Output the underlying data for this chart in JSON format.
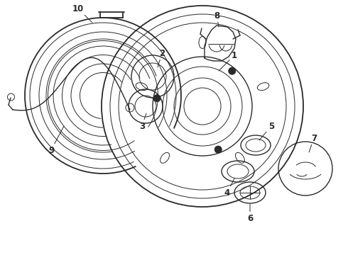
{
  "background_color": "#ffffff",
  "line_color": "#2a2a2a",
  "figsize": [
    4.9,
    3.6
  ],
  "dpi": 100,
  "xlim": [
    0,
    4.9
  ],
  "ylim": [
    0,
    3.6
  ]
}
